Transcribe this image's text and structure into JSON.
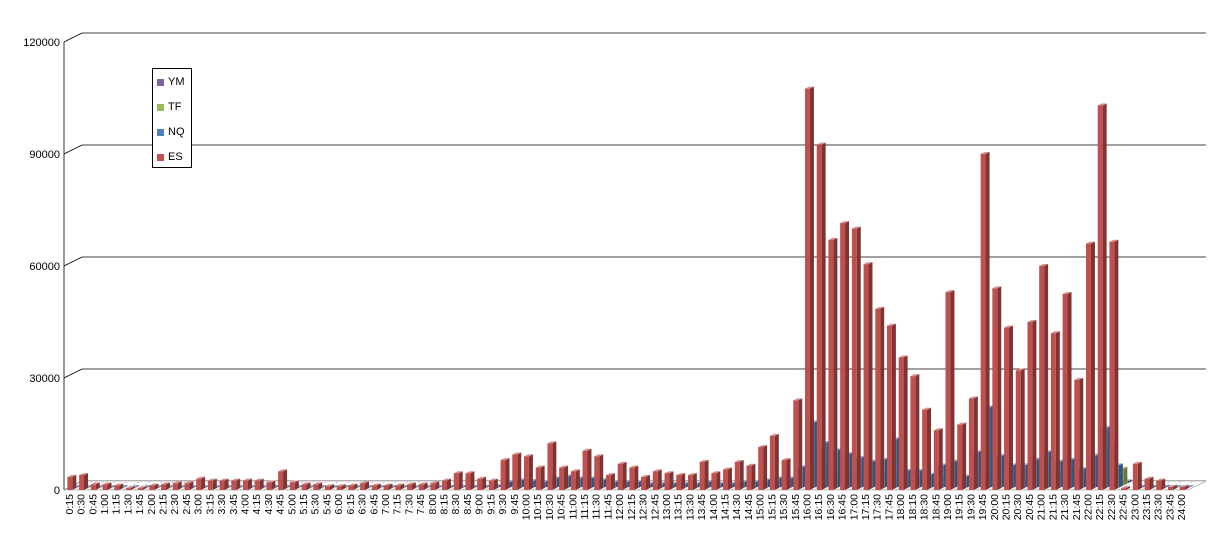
{
  "chart_data": {
    "type": "bar",
    "subtype": "3d-clustered-column",
    "title": "",
    "xlabel": "",
    "ylabel": "",
    "ylim": [
      0,
      120000
    ],
    "yticks": [
      0,
      30000,
      60000,
      90000,
      120000
    ],
    "grid": true,
    "legend_position": "top-left",
    "categories": [
      "0:15",
      "0:30",
      "0:45",
      "1:00",
      "1:15",
      "1:30",
      "1:45",
      "2:00",
      "2:15",
      "2:30",
      "2:45",
      "3:00",
      "3:15",
      "3:30",
      "3:45",
      "4:00",
      "4:15",
      "4:30",
      "4:45",
      "5:00",
      "5:15",
      "5:30",
      "5:45",
      "6:00",
      "6:15",
      "6:30",
      "6:45",
      "7:00",
      "7:15",
      "7:30",
      "7:45",
      "8:00",
      "8:15",
      "8:30",
      "8:45",
      "9:00",
      "9:15",
      "9:30",
      "9:45",
      "10:00",
      "10:15",
      "10:30",
      "10:45",
      "11:00",
      "11:15",
      "11:30",
      "11:45",
      "12:00",
      "12:15",
      "12:30",
      "12:45",
      "13:00",
      "13:15",
      "13:30",
      "13:45",
      "14:00",
      "14:15",
      "14:30",
      "14:45",
      "15:00",
      "15:15",
      "15:30",
      "15:45",
      "16:00",
      "16:15",
      "16:30",
      "16:45",
      "17:00",
      "17:15",
      "17:30",
      "17:45",
      "18:00",
      "18:15",
      "18:30",
      "18:45",
      "19:00",
      "19:15",
      "19:30",
      "19:45",
      "20:00",
      "20:15",
      "20:30",
      "20:45",
      "21:00",
      "21:15",
      "21:30",
      "21:45",
      "22:00",
      "22:15",
      "22:30",
      "22:45",
      "23:00",
      "23:15",
      "23:30",
      "23:45",
      "24:00"
    ],
    "series": [
      {
        "name": "YM",
        "color": "#8064a2",
        "values": [
          0,
          0,
          0,
          0,
          0,
          0,
          0,
          0,
          0,
          0,
          0,
          0,
          0,
          0,
          0,
          0,
          0,
          0,
          0,
          0,
          0,
          0,
          0,
          0,
          0,
          0,
          0,
          0,
          0,
          0,
          0,
          0,
          0,
          0,
          0,
          0,
          0,
          0,
          0,
          0,
          0,
          0,
          0,
          0,
          0,
          0,
          0,
          0,
          0,
          0,
          0,
          0,
          0,
          0,
          0,
          0,
          0,
          0,
          0,
          0,
          0,
          0,
          0,
          500,
          500,
          500,
          500,
          500,
          500,
          500,
          500,
          500,
          500,
          500,
          500,
          500,
          500,
          500,
          500,
          500,
          500,
          500,
          500,
          500,
          500,
          500,
          500,
          500,
          500,
          500,
          0,
          0,
          0,
          0,
          0,
          0
        ]
      },
      {
        "name": "TF",
        "color": "#9bbb59",
        "values": [
          0,
          0,
          0,
          0,
          0,
          0,
          0,
          0,
          0,
          0,
          0,
          0,
          0,
          0,
          0,
          0,
          0,
          0,
          0,
          0,
          0,
          0,
          0,
          0,
          0,
          0,
          0,
          0,
          0,
          0,
          0,
          0,
          0,
          0,
          0,
          0,
          0,
          0,
          0,
          0,
          0,
          0,
          0,
          0,
          0,
          0,
          0,
          0,
          0,
          0,
          0,
          0,
          0,
          0,
          0,
          0,
          0,
          0,
          0,
          0,
          0,
          0,
          2500,
          6000,
          5500,
          4500,
          4500,
          4500,
          4000,
          3500,
          3000,
          2500,
          2500,
          2500,
          2500,
          2500,
          2500,
          3000,
          3000,
          3000,
          2500,
          2500,
          2500,
          2500,
          3000,
          3000,
          3500,
          8500,
          10500,
          4500,
          0,
          0,
          0,
          0,
          0,
          0
        ]
      },
      {
        "name": "NQ",
        "color": "#4f81bd",
        "values": [
          200,
          200,
          200,
          200,
          200,
          200,
          200,
          200,
          200,
          200,
          200,
          200,
          200,
          200,
          200,
          200,
          200,
          300,
          300,
          200,
          200,
          200,
          200,
          200,
          200,
          200,
          200,
          200,
          200,
          200,
          200,
          200,
          300,
          300,
          300,
          300,
          500,
          1500,
          2000,
          1800,
          1500,
          2500,
          3000,
          2500,
          2500,
          2000,
          1500,
          1500,
          1500,
          1000,
          1000,
          1000,
          1000,
          1000,
          1500,
          1000,
          1000,
          1500,
          1500,
          2000,
          2500,
          2500,
          5500,
          17500,
          12000,
          10000,
          9000,
          8000,
          7000,
          7500,
          13000,
          4500,
          4500,
          3500,
          6000,
          7000,
          3000,
          9500,
          21500,
          8500,
          6000,
          6000,
          7500,
          9500,
          7000,
          7500,
          5000,
          8500,
          16000,
          6000,
          0,
          300,
          300,
          300,
          200,
          200
        ]
      },
      {
        "name": "ES",
        "color": "#c0504d",
        "values": [
          3500,
          4000,
          1500,
          1500,
          1200,
          500,
          500,
          1200,
          1500,
          1800,
          1800,
          3000,
          2500,
          2500,
          2500,
          2500,
          2500,
          2000,
          5000,
          2000,
          1500,
          1500,
          1000,
          1000,
          1200,
          1800,
          1200,
          1200,
          1200,
          1500,
          1500,
          1800,
          2500,
          4500,
          4500,
          3000,
          2500,
          8000,
          9500,
          9000,
          6000,
          12500,
          6000,
          5000,
          10500,
          9000,
          4000,
          7000,
          6000,
          3500,
          5000,
          4500,
          4000,
          4000,
          7500,
          4500,
          5500,
          7500,
          6500,
          11500,
          14500,
          8000,
          24000,
          107500,
          92500,
          67000,
          71500,
          70000,
          60500,
          48500,
          44000,
          35500,
          30500,
          21500,
          16000,
          53000,
          17500,
          24500,
          90000,
          54000,
          43500,
          32000,
          45000,
          60000,
          42000,
          52500,
          29500,
          66000,
          103000,
          66500,
          500,
          7000,
          3000,
          2500,
          800,
          800
        ]
      }
    ]
  },
  "legend_labels": [
    "YM",
    "TF",
    "NQ",
    "ES"
  ],
  "tick_labels_y": [
    "0",
    "30000",
    "60000",
    "90000",
    "120000"
  ]
}
